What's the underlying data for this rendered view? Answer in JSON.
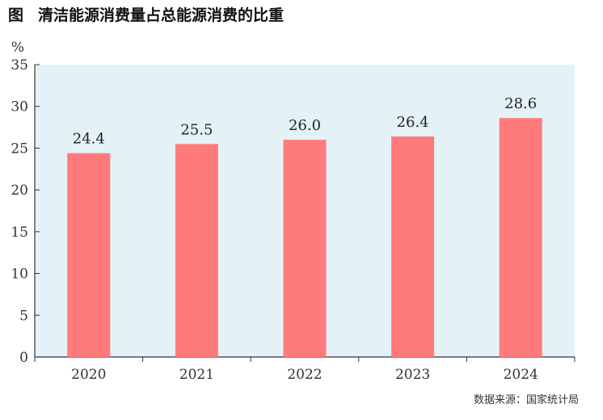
{
  "title": {
    "prefix": "图",
    "text": "清洁能源消费量占总能源消费的比重"
  },
  "source": "数据来源：国家统计局",
  "colors": {
    "bar": "#ff7b7b",
    "plot_bg": "#e4f2f8",
    "axis": "#333333"
  },
  "chart_data": {
    "type": "bar",
    "title": "清洁能源消费量占总能源消费的比重",
    "xlabel": "",
    "ylabel": "%",
    "categories": [
      "2020",
      "2021",
      "2022",
      "2023",
      "2024"
    ],
    "values": [
      24.4,
      25.5,
      26.0,
      26.4,
      28.6
    ],
    "value_labels": [
      "24.4",
      "25.5",
      "26.0",
      "26.4",
      "28.6"
    ],
    "ylim": [
      0,
      35
    ],
    "yticks": [
      0,
      5,
      10,
      15,
      20,
      25,
      30,
      35
    ],
    "grid": false,
    "legend": "none"
  }
}
